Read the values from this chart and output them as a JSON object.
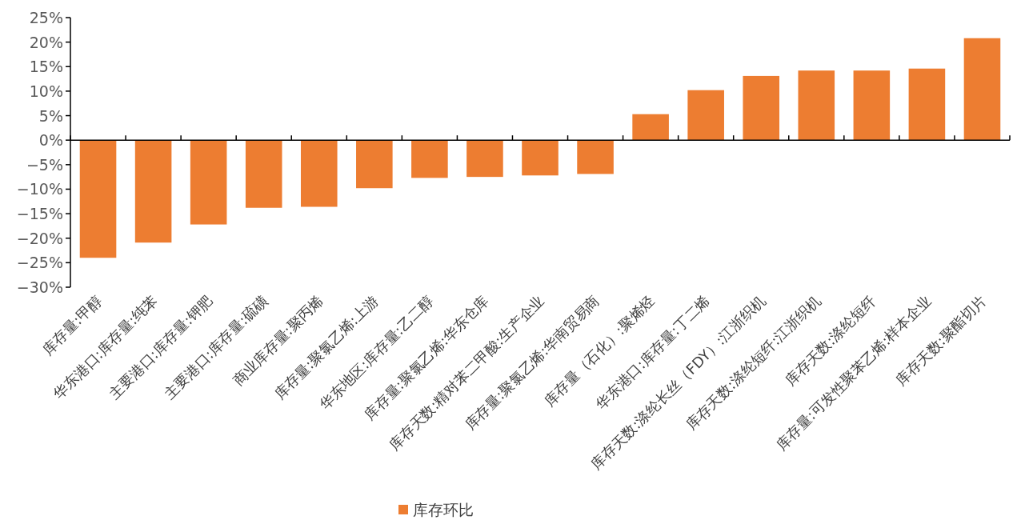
{
  "chart_data": {
    "type": "bar",
    "categories": [
      "库存量:甲醇",
      "华东港口:库存量:纯苯",
      "主要港口:库存量:钾肥",
      "主要港口:库存量:硫磺",
      "商业库存量:聚丙烯",
      "库存量:聚氯乙烯:上游",
      "华东地区:库存量:乙二醇",
      "库存量:聚氯乙烯:华东仓库",
      "库存天数:精对苯二甲酸:生产企业",
      "库存量:聚氯乙烯:华南贸易商",
      "库存量（石化）:聚烯烃",
      "华东港口:库存量:丁二烯",
      "库存天数:涤纶长丝（FDY）:江浙织机",
      "库存天数:涤纶短纤:江浙织机",
      "库存天数:涤纶短纤",
      "库存量:可发性聚苯乙烯:样本企业",
      "库存天数:聚酯切片"
    ],
    "series": [
      {
        "name": "库存环比",
        "color": "#ed7d31",
        "values": [
          -24.0,
          -20.9,
          -17.2,
          -13.8,
          -13.6,
          -9.8,
          -7.7,
          -7.5,
          -7.2,
          -6.9,
          5.3,
          10.2,
          13.1,
          14.2,
          14.2,
          14.6,
          20.8
        ]
      }
    ],
    "ylim": [
      -30,
      25
    ],
    "yticks": [
      {
        "value": -30,
        "label": "−30%"
      },
      {
        "value": -25,
        "label": "−25%"
      },
      {
        "value": -20,
        "label": "−20%"
      },
      {
        "value": -15,
        "label": "−15%"
      },
      {
        "value": -10,
        "label": "−10%"
      },
      {
        "value": -5,
        "label": "−5%"
      },
      {
        "value": 0,
        "label": "0%"
      },
      {
        "value": 5,
        "label": "5%"
      },
      {
        "value": 10,
        "label": "10%"
      },
      {
        "value": 15,
        "label": "15%"
      },
      {
        "value": 20,
        "label": "20%"
      },
      {
        "value": 25,
        "label": "25%"
      }
    ],
    "legend": "bottom"
  }
}
